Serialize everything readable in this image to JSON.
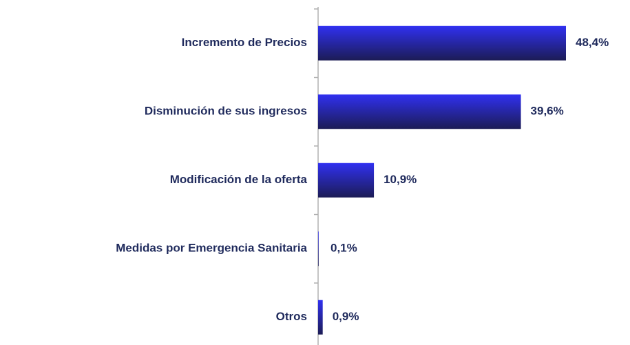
{
  "chart_data": {
    "type": "hbar",
    "categories": [
      "Incremento de Precios",
      "Disminución de sus ingresos",
      "Modificación de la oferta",
      "Medidas por Emergencia Sanitaria",
      "Otros"
    ],
    "values": [
      48.4,
      39.6,
      10.9,
      0.1,
      0.9
    ],
    "value_labels": [
      "48,4%",
      "39,6%",
      "10,9%",
      "0,1%",
      "0,9%"
    ],
    "color": "#3030f0"
  }
}
